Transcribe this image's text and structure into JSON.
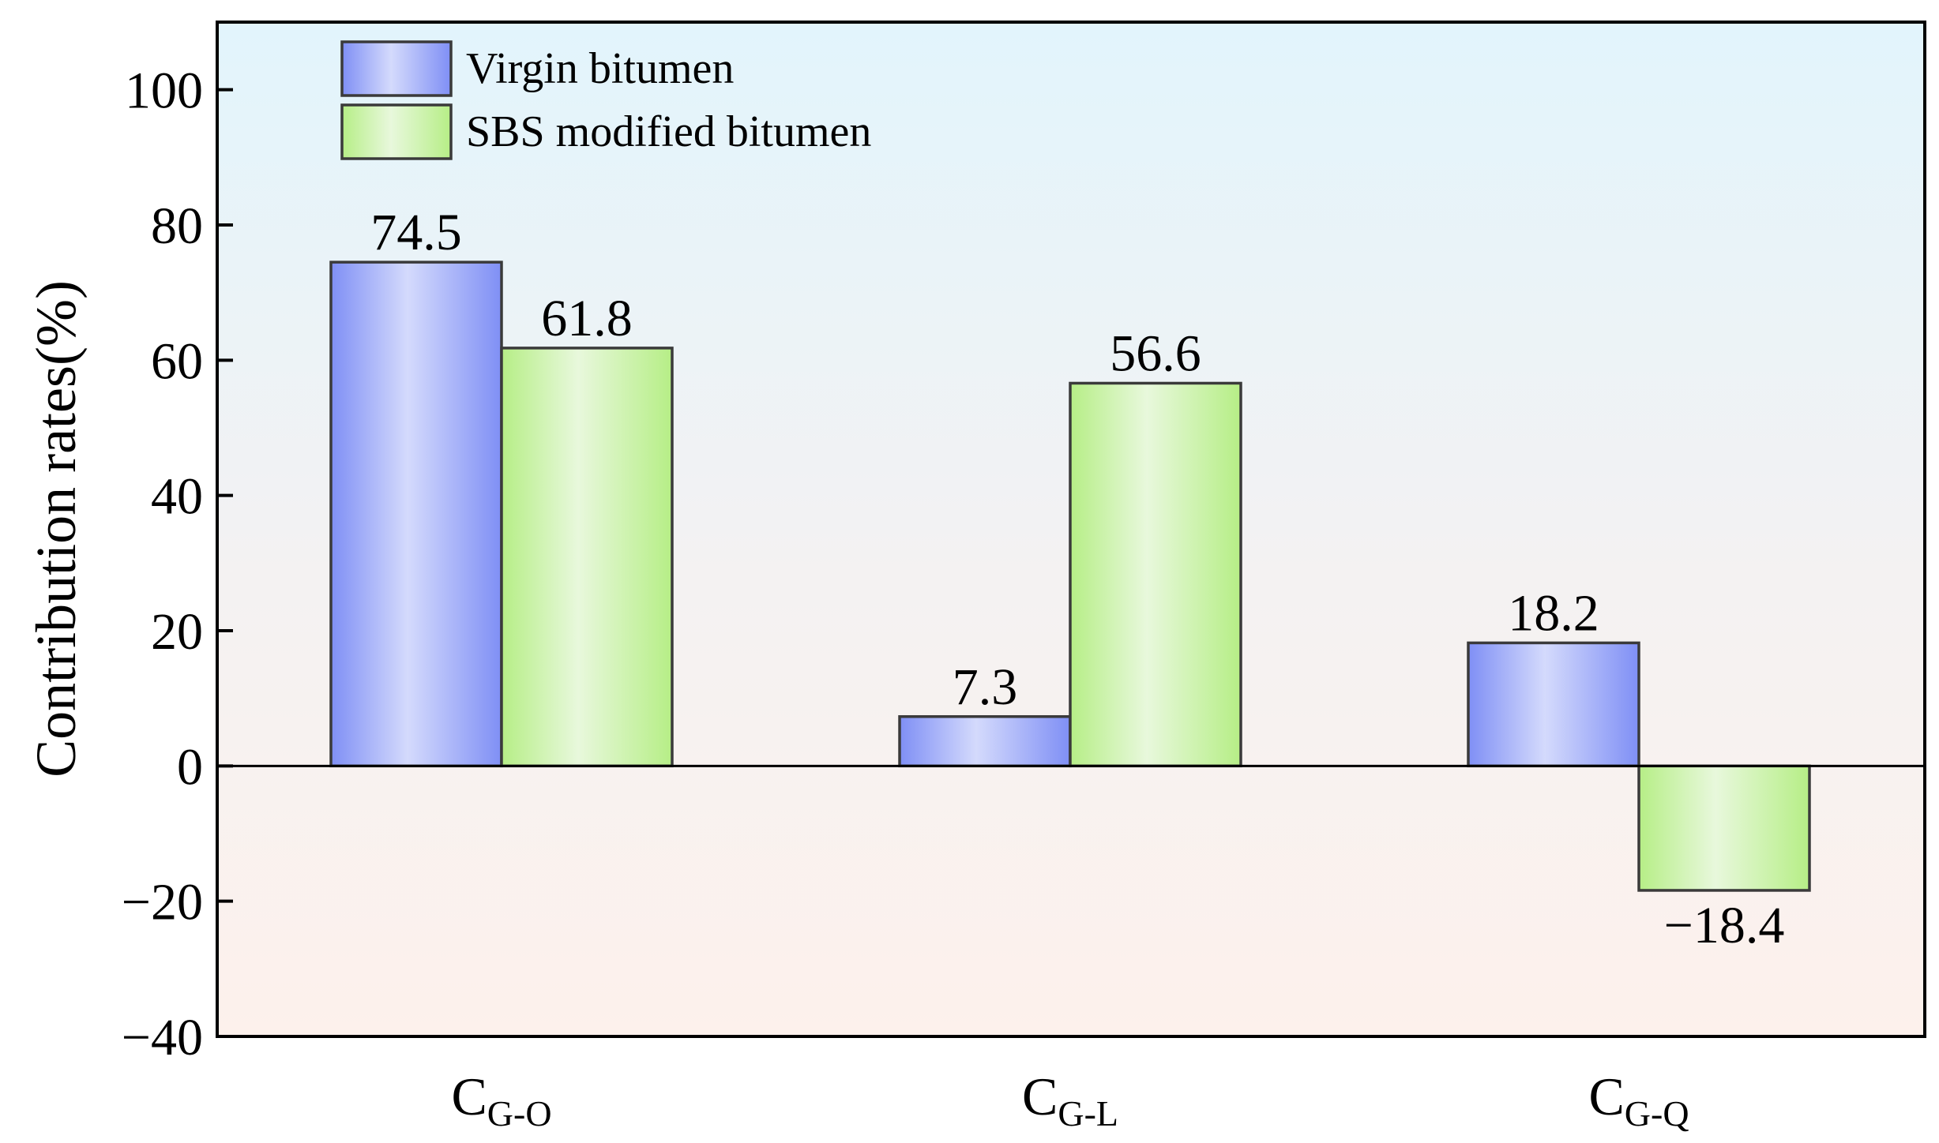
{
  "chart_data": {
    "type": "bar",
    "ylabel": "Contribution rates(%)",
    "ylim": [
      -40,
      110
    ],
    "yticks": [
      -40,
      -20,
      0,
      20,
      40,
      60,
      80,
      100
    ],
    "ytick_labels": [
      "−40",
      "−20",
      "0",
      "20",
      "40",
      "60",
      "80",
      "100"
    ],
    "categories": [
      {
        "main": "C",
        "sub": "G-O"
      },
      {
        "main": "C",
        "sub": "G-L"
      },
      {
        "main": "C",
        "sub": "G-Q"
      }
    ],
    "series": [
      {
        "name": "Virgin bitumen",
        "values": [
          74.5,
          7.3,
          18.2
        ],
        "labels": [
          "74.5",
          "7.3",
          "18.2"
        ],
        "color_edge": "#7f8ff5",
        "color_center": "#d4dafc"
      },
      {
        "name": "SBS modified bitumen",
        "values": [
          61.8,
          56.6,
          -18.4
        ],
        "labels": [
          "61.8",
          "56.6",
          "−18.4"
        ],
        "color_edge": "#b6ee86",
        "color_center": "#e8f8dc"
      }
    ],
    "legend_position": "top-left",
    "background_top": "#e2f4fc",
    "background_bottom": "#fdf1ec"
  }
}
